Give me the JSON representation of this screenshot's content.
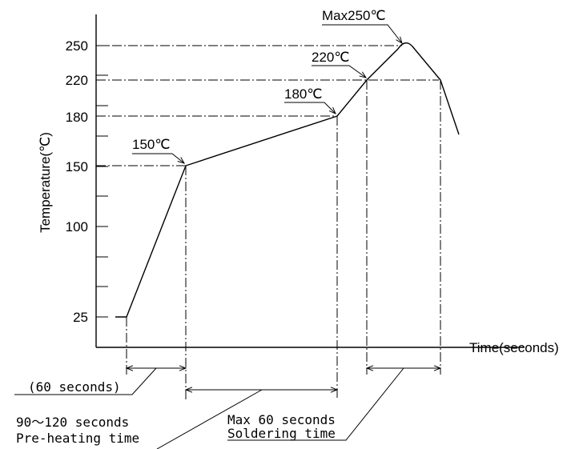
{
  "axes": {
    "y_label": "Temperature(℃)",
    "x_label": "Time(seconds)",
    "y_ticks": [
      "250",
      "220",
      "180",
      "150",
      "100",
      "25"
    ]
  },
  "annotations": {
    "peak": "Max250℃",
    "t220": "220℃",
    "t180": "180℃",
    "t150": "150℃"
  },
  "durations": {
    "initial": "(60 seconds)",
    "preheat_range": "90～120 seconds",
    "preheat_label": "Pre-heating time",
    "solder_range": "Max 60 seconds",
    "solder_label": "Soldering time"
  }
}
